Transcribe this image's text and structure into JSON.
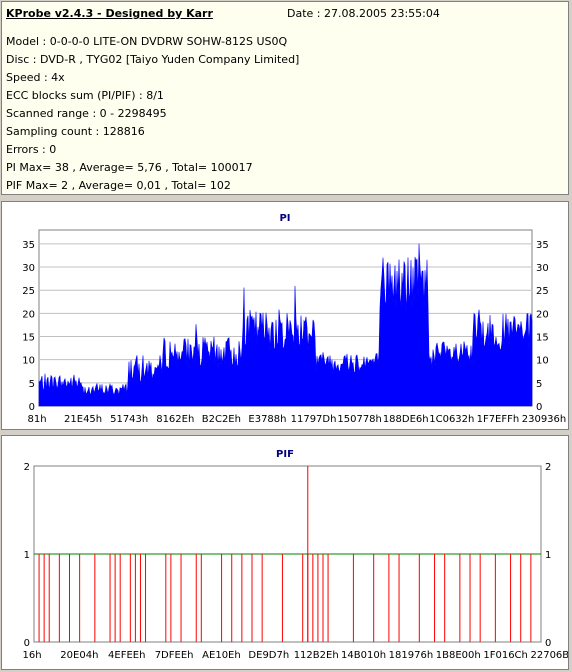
{
  "header": {
    "title": "KProbe v2.4.3 - Designed by Karr",
    "date": "Date : 27.08.2005 23:55:04"
  },
  "info_lines": [
    "Model : 0-0-0-0 LITE-ON DVDRW SOHW-812S  US0Q",
    "Disc : DVD-R , TYG02 [Taiyo Yuden Company Limited]",
    "Speed : 4x",
    "ECC blocks sum (PI/PIF) : 8/1",
    "Scanned range : 0 - 2298495",
    "Sampling count : 128816",
    "Errors : 0",
    "PI Max= 38 , Average= 5,76 , Total= 100017",
    "PIF Max= 2 , Average= 0,01 , Total= 102"
  ],
  "chart_data": [
    {
      "type": "area",
      "title": "PI",
      "color": "#0000ff",
      "ylim": [
        0,
        38
      ],
      "yticks": [
        0,
        5,
        10,
        15,
        20,
        25,
        30,
        35
      ],
      "xticks": [
        "81h",
        "21E45h",
        "51743h",
        "8162Eh",
        "B2C2Eh",
        "E3788h",
        "11797Dh",
        "150778h",
        "188DE6h",
        "1C0632h",
        "1F7EFFh",
        "230936h"
      ],
      "segments": [
        {
          "x_from": 0.0,
          "x_to": 0.09,
          "base": 3,
          "noise": 4,
          "peak": 9
        },
        {
          "x_from": 0.09,
          "x_to": 0.18,
          "base": 2,
          "noise": 3,
          "peak": 7
        },
        {
          "x_from": 0.18,
          "x_to": 0.25,
          "base": 5,
          "noise": 6,
          "peak": 14
        },
        {
          "x_from": 0.25,
          "x_to": 0.41,
          "base": 8,
          "noise": 7,
          "peak": 19
        },
        {
          "x_from": 0.41,
          "x_to": 0.56,
          "base": 12,
          "noise": 9,
          "peak": 27
        },
        {
          "x_from": 0.56,
          "x_to": 0.69,
          "base": 7,
          "noise": 5,
          "peak": 15
        },
        {
          "x_from": 0.69,
          "x_to": 0.79,
          "base": 20,
          "noise": 13,
          "peak": 38
        },
        {
          "x_from": 0.79,
          "x_to": 0.88,
          "base": 8,
          "noise": 6,
          "peak": 16
        },
        {
          "x_from": 0.88,
          "x_to": 1.0,
          "base": 12,
          "noise": 8,
          "peak": 30
        }
      ]
    },
    {
      "type": "bar",
      "title": "PIF",
      "color": "#ff0000",
      "ylim": [
        0,
        2
      ],
      "yticks": [
        0,
        1,
        2
      ],
      "xticks": [
        "16h",
        "20E04h",
        "4EFEEh",
        "7DFEEh",
        "AE10Eh",
        "DE9D7h",
        "112B2Eh",
        "14B010h",
        "181976h",
        "1B8E00h",
        "1F016Ch",
        "22706Bh"
      ],
      "ones": [
        0.01,
        0.02,
        0.03,
        0.05,
        0.07,
        0.09,
        0.12,
        0.15,
        0.16,
        0.17,
        0.19,
        0.2,
        0.21,
        0.22,
        0.26,
        0.27,
        0.29,
        0.32,
        0.33,
        0.37,
        0.39,
        0.41,
        0.43,
        0.45,
        0.49,
        0.53,
        0.54,
        0.55,
        0.56,
        0.57,
        0.58,
        0.63,
        0.67,
        0.7,
        0.72,
        0.76,
        0.79,
        0.81,
        0.84,
        0.86,
        0.88,
        0.91,
        0.94,
        0.96,
        0.98
      ],
      "twos": [
        0.54
      ]
    }
  ]
}
